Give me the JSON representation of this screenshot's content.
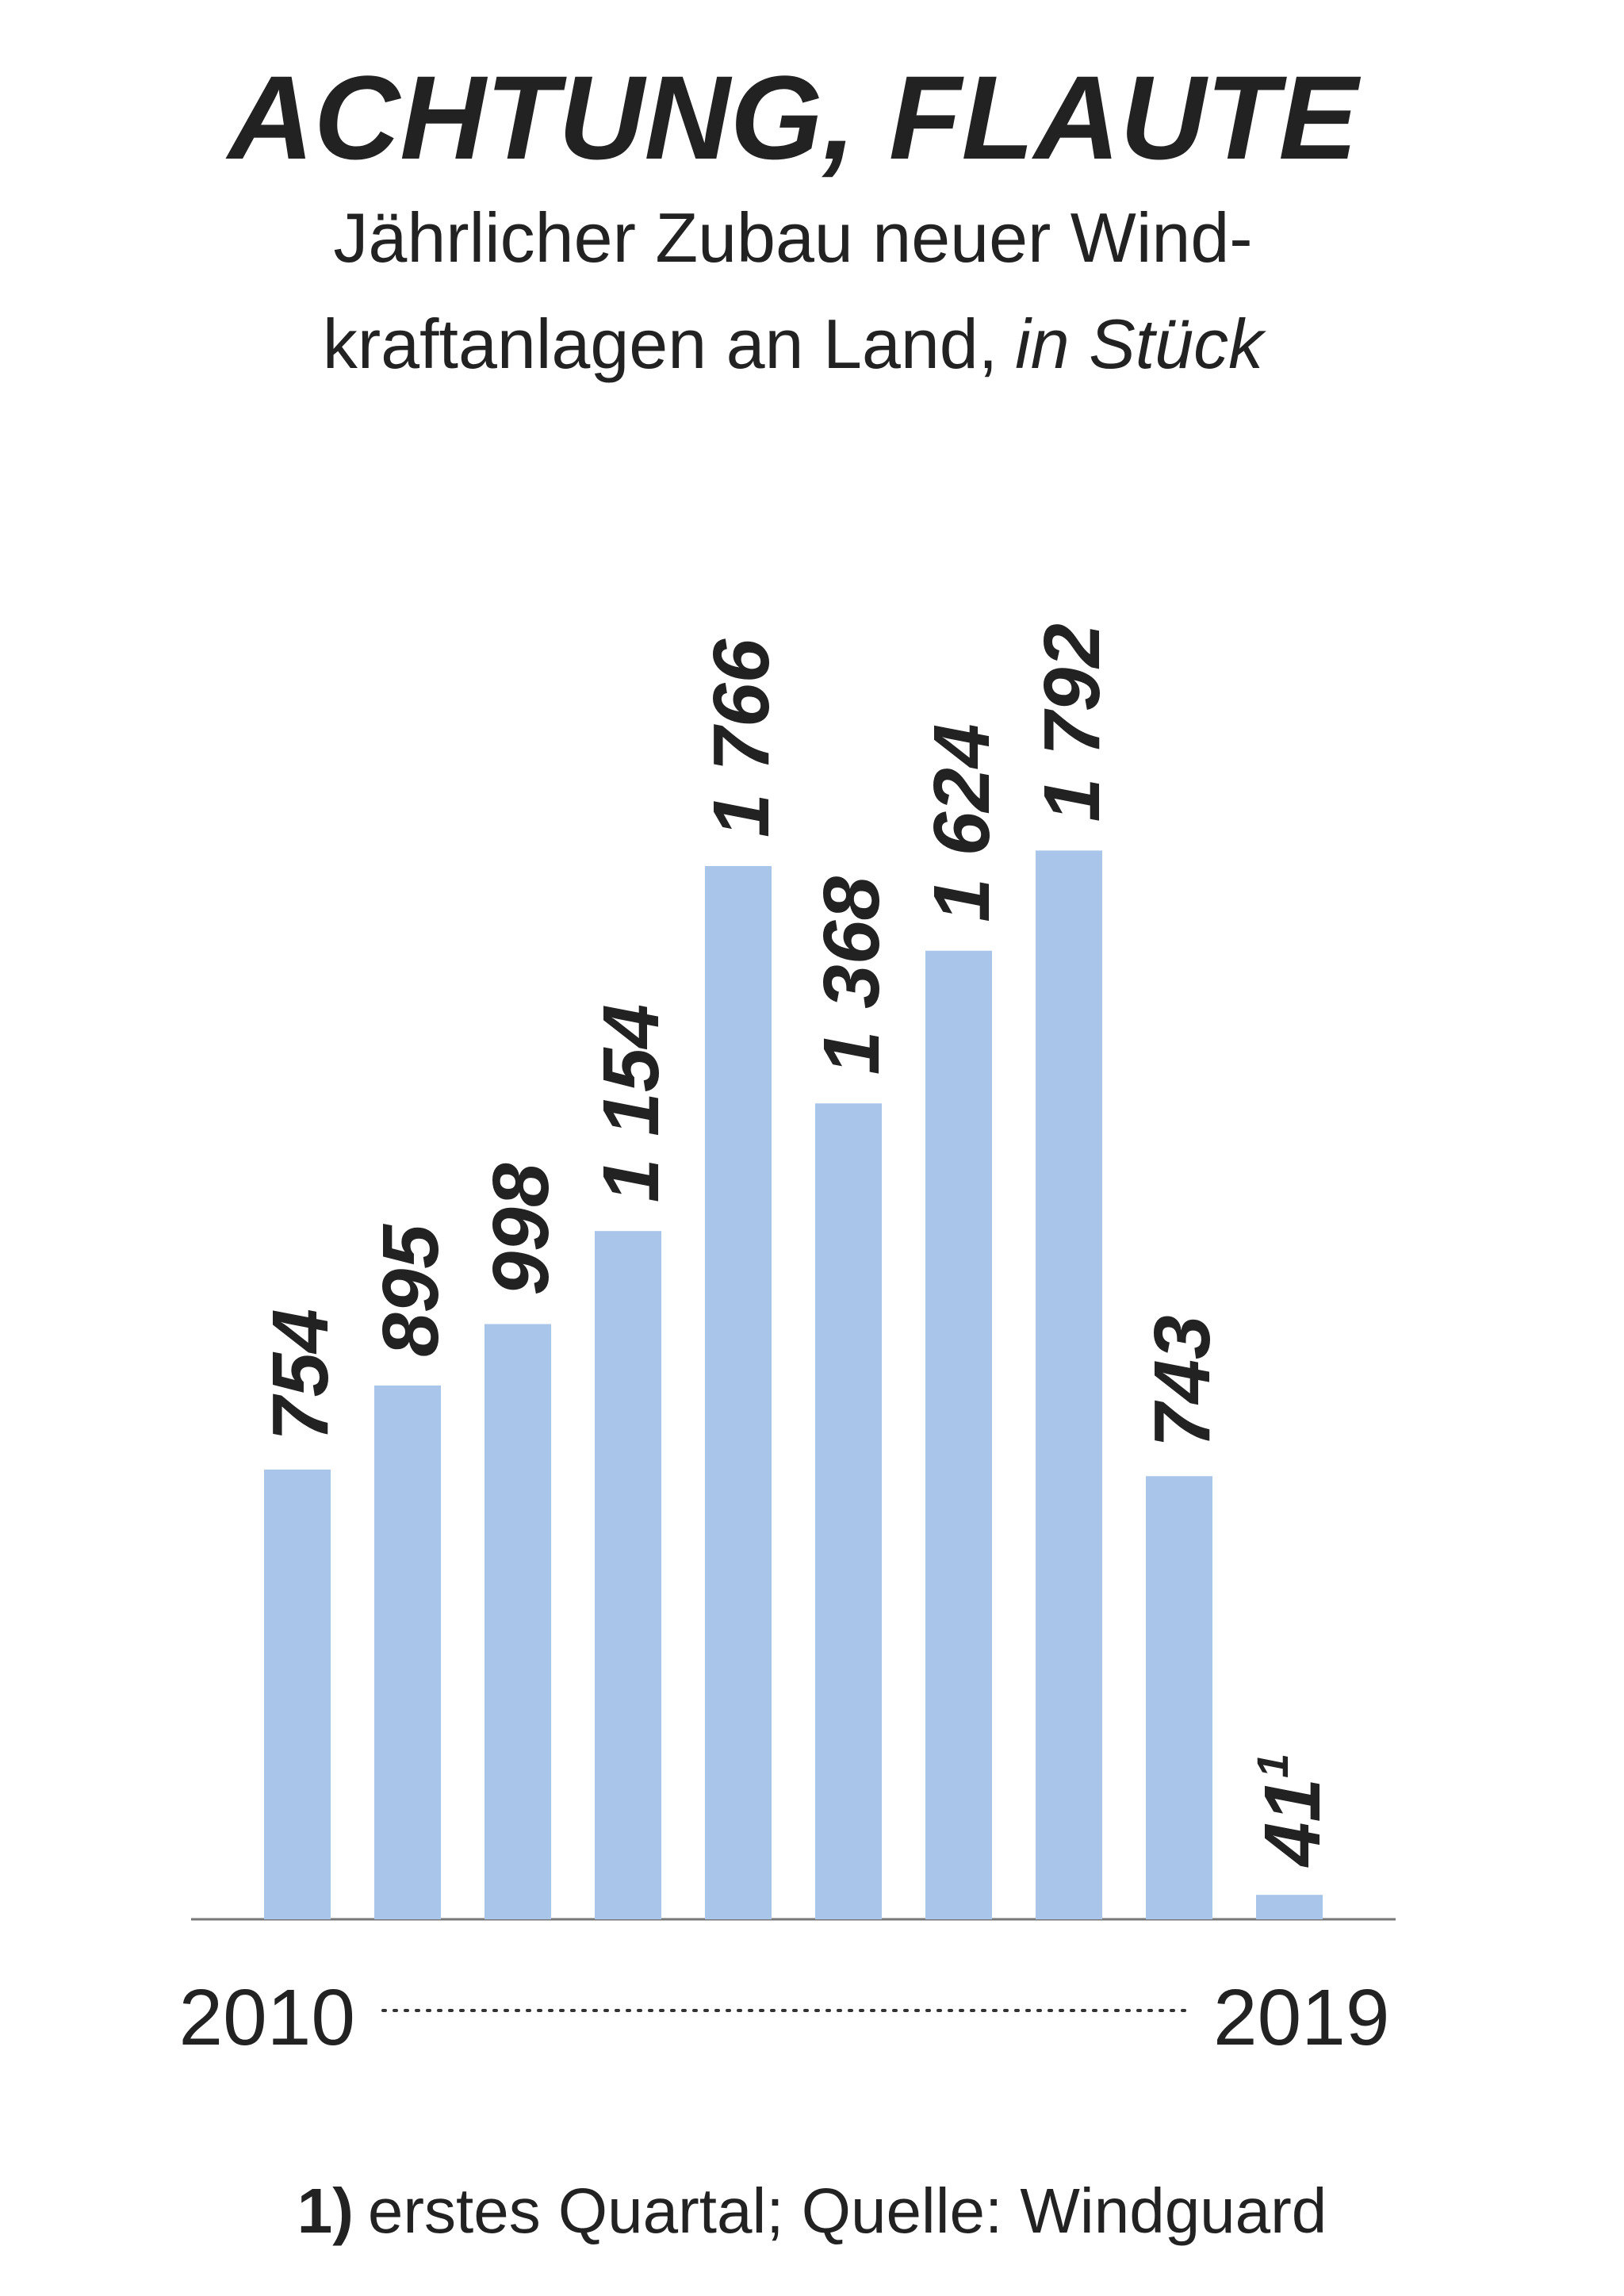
{
  "chart_data": {
    "type": "bar",
    "title": "ACHTUNG, FLAUTE",
    "subtitle": [
      "Jährlicher Zubau neuer Wind-",
      "kraftanlagen an Land,"
    ],
    "unit": "in Stück",
    "categories": [
      "2010",
      null,
      null,
      null,
      null,
      null,
      null,
      null,
      null,
      "2019"
    ],
    "values": [
      754,
      895,
      998,
      1154,
      1766,
      1368,
      1624,
      1792,
      743,
      41
    ],
    "value_labels": [
      "754",
      "895",
      "998",
      "1 154",
      "1 766",
      "1 368",
      "1 624",
      "1 792",
      "743",
      "41"
    ],
    "footnote_marker": "1",
    "color": "#a9c6ea",
    "ylim": [
      0,
      2000
    ],
    "footnote": {
      "marker": "1)",
      "text": "erstes Quartal; Quelle: Windguard"
    }
  }
}
